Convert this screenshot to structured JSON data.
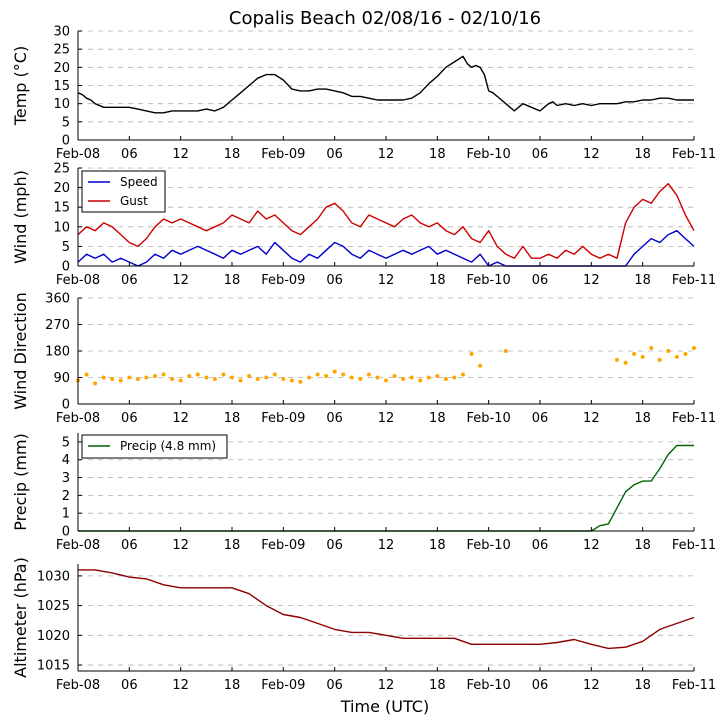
{
  "chart_data": {
    "title": "Copalis Beach 02/08/16 - 02/10/16",
    "xlabel": "Time (UTC)",
    "x_unit": "hours since 2016-02-08 00:00 UTC",
    "xlim": [
      0,
      72
    ],
    "x_ticks": [
      0,
      6,
      12,
      18,
      24,
      30,
      36,
      42,
      48,
      54,
      60,
      66,
      72
    ],
    "x_tick_labels": [
      "Feb-08",
      "06",
      "12",
      "18",
      "Feb-09",
      "06",
      "12",
      "18",
      "Feb-10",
      "06",
      "12",
      "18",
      "Feb-11"
    ],
    "panels": [
      {
        "type": "line",
        "ylabel": "Temp ($^\\circ$C)",
        "ylabel_text": "Temp (°C)",
        "ylim": [
          0,
          30
        ],
        "y_ticks": [
          0,
          5,
          10,
          15,
          20,
          25,
          30
        ],
        "series": [
          {
            "name": "Temp",
            "color": "#000000",
            "x": [
              0,
              0.5,
              1,
              1.5,
              2,
              3,
              4,
              5,
              6,
              7,
              8,
              9,
              10,
              11,
              12,
              13,
              14,
              15,
              16,
              17,
              18,
              19,
              20,
              21,
              22,
              23,
              24,
              25,
              26,
              27,
              28,
              29,
              30,
              31,
              32,
              33,
              34,
              35,
              36,
              37,
              38,
              39,
              40,
              41,
              42,
              43,
              44,
              45,
              45.5,
              46,
              46.5,
              47,
              47.5,
              48,
              48.5,
              49,
              50,
              51,
              52,
              53,
              54,
              55,
              55.5,
              56,
              57,
              58,
              59,
              60,
              61,
              62,
              63,
              64,
              65,
              66,
              67,
              68,
              69,
              70,
              71,
              72
            ],
            "y": [
              13,
              12.5,
              11.5,
              11,
              10,
              9,
              9,
              9,
              9,
              8.5,
              8,
              7.5,
              7.5,
              8,
              8,
              8,
              8,
              8.5,
              8,
              9,
              11,
              13,
              15,
              17,
              18,
              18,
              16.5,
              14,
              13.5,
              13.5,
              14,
              14,
              13.5,
              13,
              12,
              12,
              11.5,
              11,
              11,
              11,
              11,
              11.5,
              13,
              15.5,
              17.5,
              20,
              21.5,
              23,
              21,
              20,
              20.5,
              20,
              18,
              13.5,
              13,
              12,
              10,
              8,
              10,
              9,
              8,
              10,
              10.5,
              9.5,
              10,
              9.5,
              10,
              9.5,
              10,
              10,
              10,
              10.5,
              10.5,
              11,
              11,
              11.5,
              11.5,
              11,
              11,
              11
            ]
          }
        ]
      },
      {
        "type": "line",
        "ylabel": "Wind (mph)",
        "ylim": [
          0,
          25
        ],
        "y_ticks": [
          0,
          5,
          10,
          15,
          20,
          25
        ],
        "legend": {
          "position": "upper-left",
          "entries": [
            "Speed",
            "Gust"
          ]
        },
        "series": [
          {
            "name": "Speed",
            "color": "#0000cc",
            "x": [
              0,
              1,
              2,
              3,
              4,
              5,
              6,
              7,
              8,
              9,
              10,
              11,
              12,
              13,
              14,
              15,
              16,
              17,
              18,
              19,
              20,
              21,
              22,
              23,
              24,
              25,
              26,
              27,
              28,
              29,
              30,
              31,
              32,
              33,
              34,
              35,
              36,
              37,
              38,
              39,
              40,
              41,
              42,
              43,
              44,
              45,
              46,
              47,
              48,
              49,
              50,
              51,
              52,
              53,
              54,
              55,
              56,
              57,
              58,
              59,
              60,
              61,
              62,
              63,
              64,
              65,
              66,
              67,
              68,
              69,
              70,
              71,
              72
            ],
            "y": [
              1,
              3,
              2,
              3,
              1,
              2,
              1,
              0,
              1,
              3,
              2,
              4,
              3,
              4,
              5,
              4,
              3,
              2,
              4,
              3,
              4,
              5,
              3,
              6,
              4,
              2,
              1,
              3,
              2,
              4,
              6,
              5,
              3,
              2,
              4,
              3,
              2,
              3,
              4,
              3,
              4,
              5,
              3,
              4,
              3,
              2,
              1,
              3,
              0,
              1,
              0,
              0,
              0,
              0,
              0,
              0,
              0,
              0,
              0,
              0,
              0,
              0,
              0,
              0,
              0,
              3,
              5,
              7,
              6,
              8,
              9,
              7,
              5
            ]
          },
          {
            "name": "Gust",
            "color": "#cc0000",
            "x": [
              0,
              1,
              2,
              3,
              4,
              5,
              6,
              7,
              8,
              9,
              10,
              11,
              12,
              13,
              14,
              15,
              16,
              17,
              18,
              19,
              20,
              21,
              22,
              23,
              24,
              25,
              26,
              27,
              28,
              29,
              30,
              31,
              32,
              33,
              34,
              35,
              36,
              37,
              38,
              39,
              40,
              41,
              42,
              43,
              44,
              45,
              46,
              47,
              48,
              49,
              50,
              51,
              52,
              53,
              54,
              55,
              56,
              57,
              58,
              59,
              60,
              61,
              62,
              63,
              64,
              65,
              66,
              67,
              68,
              69,
              70,
              71,
              72
            ],
            "y": [
              8,
              10,
              9,
              11,
              10,
              8,
              6,
              5,
              7,
              10,
              12,
              11,
              12,
              11,
              10,
              9,
              10,
              11,
              13,
              12,
              11,
              14,
              12,
              13,
              11,
              9,
              8,
              10,
              12,
              15,
              16,
              14,
              11,
              10,
              13,
              12,
              11,
              10,
              12,
              13,
              11,
              10,
              11,
              9,
              8,
              10,
              7,
              6,
              9,
              5,
              3,
              2,
              5,
              2,
              2,
              3,
              2,
              4,
              3,
              5,
              3,
              2,
              3,
              2,
              11,
              15,
              17,
              16,
              19,
              21,
              18,
              13,
              9
            ]
          }
        ]
      },
      {
        "type": "scatter",
        "ylabel": "Wind Direction",
        "ylim": [
          0,
          360
        ],
        "y_ticks": [
          0,
          90,
          180,
          270,
          360
        ],
        "series": [
          {
            "name": "Direction",
            "color": "#ffa500",
            "x": [
              0,
              1,
              2,
              3,
              4,
              5,
              6,
              7,
              8,
              9,
              10,
              11,
              12,
              13,
              14,
              15,
              16,
              17,
              18,
              19,
              20,
              21,
              22,
              23,
              24,
              25,
              26,
              27,
              28,
              29,
              30,
              31,
              32,
              33,
              34,
              35,
              36,
              37,
              38,
              39,
              40,
              41,
              42,
              43,
              44,
              45,
              46,
              47,
              50,
              63,
              64,
              65,
              66,
              67,
              68,
              69,
              70,
              71,
              72
            ],
            "y": [
              80,
              100,
              70,
              90,
              85,
              80,
              90,
              85,
              90,
              95,
              100,
              85,
              80,
              95,
              100,
              90,
              85,
              100,
              90,
              80,
              95,
              85,
              90,
              100,
              85,
              80,
              75,
              90,
              100,
              95,
              110,
              100,
              90,
              85,
              100,
              90,
              80,
              95,
              85,
              90,
              80,
              90,
              95,
              85,
              90,
              100,
              170,
              130,
              180,
              150,
              140,
              170,
              160,
              190,
              150,
              180,
              160,
              170,
              190
            ]
          }
        ]
      },
      {
        "type": "line",
        "ylabel": "Precip (mm)",
        "ylim": [
          0,
          5.5
        ],
        "y_ticks": [
          0,
          1,
          2,
          3,
          4,
          5
        ],
        "legend": {
          "position": "upper-left",
          "entries": [
            "Precip (4.8 mm)"
          ]
        },
        "series": [
          {
            "name": "Precip (4.8 mm)",
            "color": "#006400",
            "x": [
              0,
              10,
              20,
              30,
              40,
              50,
              60,
              61,
              62,
              63,
              64,
              65,
              66,
              67,
              68,
              69,
              70,
              71,
              72
            ],
            "y": [
              0,
              0,
              0,
              0,
              0,
              0,
              0,
              0.3,
              0.4,
              1.3,
              2.2,
              2.6,
              2.8,
              2.8,
              3.5,
              4.3,
              4.8,
              4.8,
              4.8
            ]
          }
        ]
      },
      {
        "type": "line",
        "ylabel": "Altimeter (hPa)",
        "ylim": [
          1014,
          1032
        ],
        "y_ticks": [
          1015,
          1020,
          1025,
          1030
        ],
        "series": [
          {
            "name": "Altimeter",
            "color": "#8b0000",
            "x": [
              0,
              2,
              4,
              6,
              8,
              10,
              12,
              14,
              16,
              18,
              20,
              22,
              24,
              26,
              28,
              30,
              32,
              34,
              36,
              38,
              40,
              42,
              44,
              46,
              48,
              50,
              52,
              54,
              56,
              58,
              60,
              62,
              64,
              66,
              68,
              70,
              72
            ],
            "y": [
              1031,
              1031,
              1030.5,
              1029.8,
              1029.5,
              1028.5,
              1028,
              1028,
              1028,
              1028,
              1027,
              1025,
              1023.5,
              1023,
              1022,
              1021,
              1020.5,
              1020.5,
              1020,
              1019.5,
              1019.5,
              1019.5,
              1019.5,
              1018.5,
              1018.5,
              1018.5,
              1018.5,
              1018.5,
              1018.8,
              1019.3,
              1018.5,
              1017.8,
              1018,
              1019,
              1021,
              1022,
              1023
            ]
          }
        ]
      }
    ]
  }
}
